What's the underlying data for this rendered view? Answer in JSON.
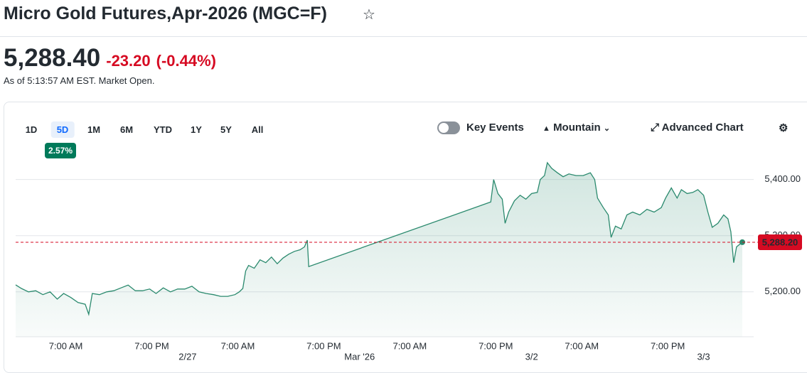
{
  "header": {
    "title": "Micro Gold Futures,Apr-2026 (MGC=F)"
  },
  "quote": {
    "price": "5,288.40",
    "change": "-23.20",
    "change_percent": "(-0.44%)",
    "timestamp": "As of 5:13:57 AM EST. Market Open."
  },
  "toolbar": {
    "ranges": [
      "1D",
      "5D",
      "1M",
      "6M",
      "YTD",
      "1Y",
      "5Y",
      "All"
    ],
    "selected": "5D",
    "range_return": "2.57%",
    "key_events": "Key Events",
    "chart_style": "Mountain",
    "advanced_chart": "Advanced Chart"
  },
  "chart_data": {
    "type": "area",
    "color": "#2b8a6e",
    "x": [
      0,
      0.8,
      1.8,
      2.8,
      3.8,
      4.8,
      5.8,
      6.7,
      7.7,
      8.7,
      9.7,
      10.2,
      10.7,
      11.7,
      12.7,
      13.7,
      14.7,
      15.7,
      16.7,
      17.7,
      18.7,
      19.6,
      20.6,
      21.6,
      22.6,
      23.6,
      24.6,
      25.6,
      26.6,
      27.6,
      28.6,
      29.6,
      30.6,
      31.2,
      31.7,
      32.1,
      32.5,
      33.3,
      34.1,
      34.9,
      35.7,
      36.5,
      37.3,
      38.1,
      38.9,
      39.7,
      40.3,
      40.7,
      40.9,
      66.3,
      66.7,
      67.3,
      67.9,
      68.3,
      68.8,
      69.6,
      70.4,
      71.2,
      72.0,
      72.8,
      73.2,
      73.8,
      74.2,
      74.8,
      75.6,
      76.4,
      77.2,
      78.2,
      79.2,
      80.2,
      80.8,
      81.2,
      82.0,
      82.7,
      83.1,
      83.7,
      84.5,
      85.3,
      86.1,
      87.1,
      88.1,
      89.1,
      90.1,
      90.7,
      91.5,
      92.3,
      92.9,
      93.7,
      94.5,
      95.2,
      96.0,
      96.6,
      97.2,
      98.0,
      98.8,
      99.4,
      99.8,
      100.2,
      100.6,
      101.4
    ],
    "values": [
      5212.5,
      5206,
      5200,
      5202,
      5195,
      5200,
      5187,
      5197,
      5190,
      5181,
      5178,
      5160,
      5197,
      5195,
      5200,
      5202,
      5207,
      5212,
      5202,
      5202,
      5205,
      5197,
      5207,
      5200,
      5205,
      5205,
      5210,
      5200,
      5197,
      5195,
      5192,
      5192,
      5195,
      5200,
      5206,
      5237,
      5247,
      5242,
      5257,
      5252,
      5262,
      5250,
      5260,
      5267,
      5272,
      5275,
      5280,
      5292,
      5245,
      5360,
      5400,
      5375,
      5365,
      5322,
      5342,
      5362,
      5372,
      5365,
      5375,
      5377,
      5400,
      5407,
      5430,
      5420,
      5412,
      5405,
      5410,
      5407,
      5407,
      5412,
      5400,
      5367,
      5350,
      5337,
      5297,
      5317,
      5312,
      5337,
      5342,
      5337,
      5347,
      5342,
      5350,
      5367,
      5385,
      5367,
      5382,
      5375,
      5377,
      5382,
      5372,
      5342,
      5315,
      5322,
      5337,
      5330,
      5307,
      5252,
      5280,
      5288.4
    ],
    "xlim": [
      0,
      101.5
    ],
    "ylim": [
      5120,
      5435
    ],
    "yticks": [
      {
        "value": 5400,
        "label": "5,400.00"
      },
      {
        "value": 5300,
        "label": "5,300.00"
      },
      {
        "value": 5200,
        "label": "5,200.00"
      }
    ],
    "xticks": [
      {
        "value": 7,
        "label": "7:00 AM"
      },
      {
        "value": 19,
        "label": "7:00 PM"
      },
      {
        "value": 31,
        "label": "7:00 AM"
      },
      {
        "value": 43,
        "label": "7:00 PM"
      },
      {
        "value": 55,
        "label": "7:00 AM"
      },
      {
        "value": 67,
        "label": "7:00 PM"
      },
      {
        "value": 79,
        "label": "7:00 AM"
      },
      {
        "value": 91,
        "label": "7:00 PM"
      }
    ],
    "x_date_ticks": [
      {
        "value": 24,
        "label": "2/27"
      },
      {
        "value": 48,
        "label": "Mar '26"
      },
      {
        "value": 72,
        "label": "3/2"
      },
      {
        "value": 96,
        "label": "3/3"
      }
    ],
    "price_line": {
      "value": 5288.2,
      "label": "5,288.20",
      "color": "#d60a22"
    },
    "grid": true
  }
}
